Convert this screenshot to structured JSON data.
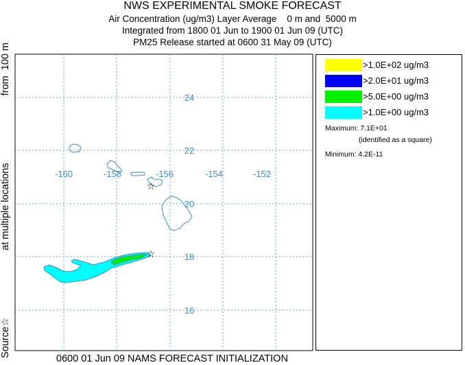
{
  "title": "NWS EXPERIMENTAL SMOKE FORECAST",
  "subtitle_lines": [
    "Air Concentration (ug/m3) Layer Average    0 m and  5000 m",
    "Integrated from 1800 01 Jun to 1900 01 Jun 09 (UTC)",
    "PM25 Release started at 0600 31 May 09 (UTC)"
  ],
  "side_label": {
    "source": "Source☆",
    "locations": "at multiple locations",
    "height": "from  100 m"
  },
  "footer": "0600 01 Jun 09 NAMS FORECAST INITIALIZATION",
  "legend": {
    "items": [
      {
        "label": ">1.0E+02 ug/m3",
        "color": "#ffff00"
      },
      {
        "label": ">2.0E+01 ug/m3",
        "color": "#0000ff"
      },
      {
        "label": ">5.0E+00 ug/m3",
        "color": "#00ee00"
      },
      {
        "label": ">1.0E+00 ug/m3",
        "color": "#00ffff"
      }
    ],
    "maximum": "Maximum: 7.1E+01",
    "maximum_note": "(identified as a square)",
    "minimum": "Minimum: 4.2E-11"
  },
  "map": {
    "lon_ticks": [
      "-160",
      "-158",
      "-156",
      "-154",
      "-152"
    ],
    "lat_ticks": [
      "24",
      "22",
      "20",
      "18",
      "16"
    ],
    "grid_color": "#5aa0d8",
    "coast_color": "#3a8fc9"
  }
}
